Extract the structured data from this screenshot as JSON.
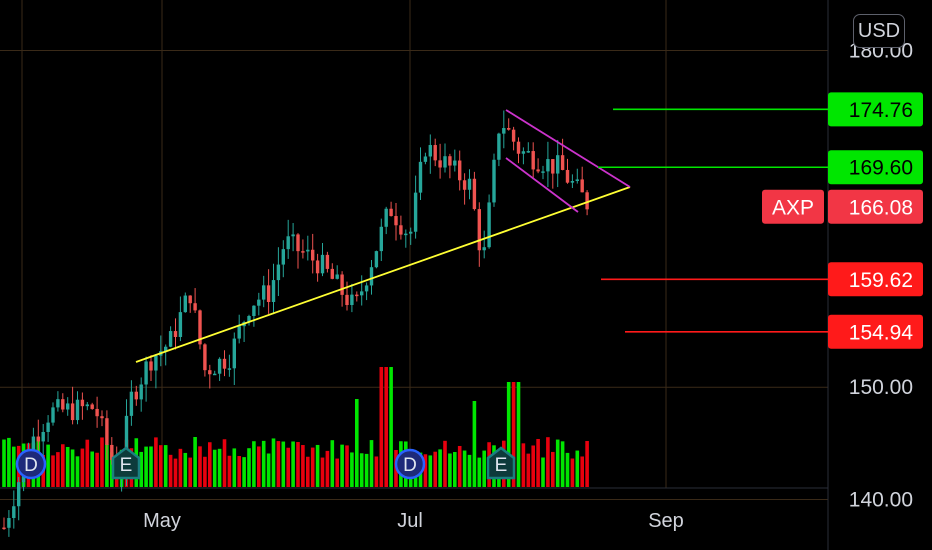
{
  "header": {
    "currency": "USD"
  },
  "chart_data": {
    "type": "candlestick",
    "symbol": "AXP",
    "last_price": "166.08",
    "y_ticks": [
      "180.00",
      "150.00",
      "140.00"
    ],
    "x_ticks": [
      "May",
      "Jul",
      "Sep"
    ],
    "ylim": [
      135.5,
      184.5
    ],
    "levels": [
      {
        "label": "174.76",
        "value": 174.76,
        "color": "#00e600"
      },
      {
        "label": "169.60",
        "value": 169.6,
        "color": "#00e600"
      },
      {
        "label": "159.62",
        "value": 159.62,
        "color": "#ff1a1a"
      },
      {
        "label": "154.94",
        "value": 154.94,
        "color": "#ff1a1a"
      }
    ],
    "event_markers": [
      {
        "letter": "D",
        "type": "dividend"
      },
      {
        "letter": "E",
        "type": "earnings"
      },
      {
        "letter": "D",
        "type": "dividend"
      },
      {
        "letter": "E",
        "type": "earnings"
      }
    ],
    "colors": {
      "up": "#26a69a",
      "down": "#ef5350",
      "vol_up": "#00e600",
      "vol_down": "#e8000e",
      "trendline": "#ffff33",
      "channel": "#cc33cc",
      "grid": "#3a2a18"
    }
  }
}
